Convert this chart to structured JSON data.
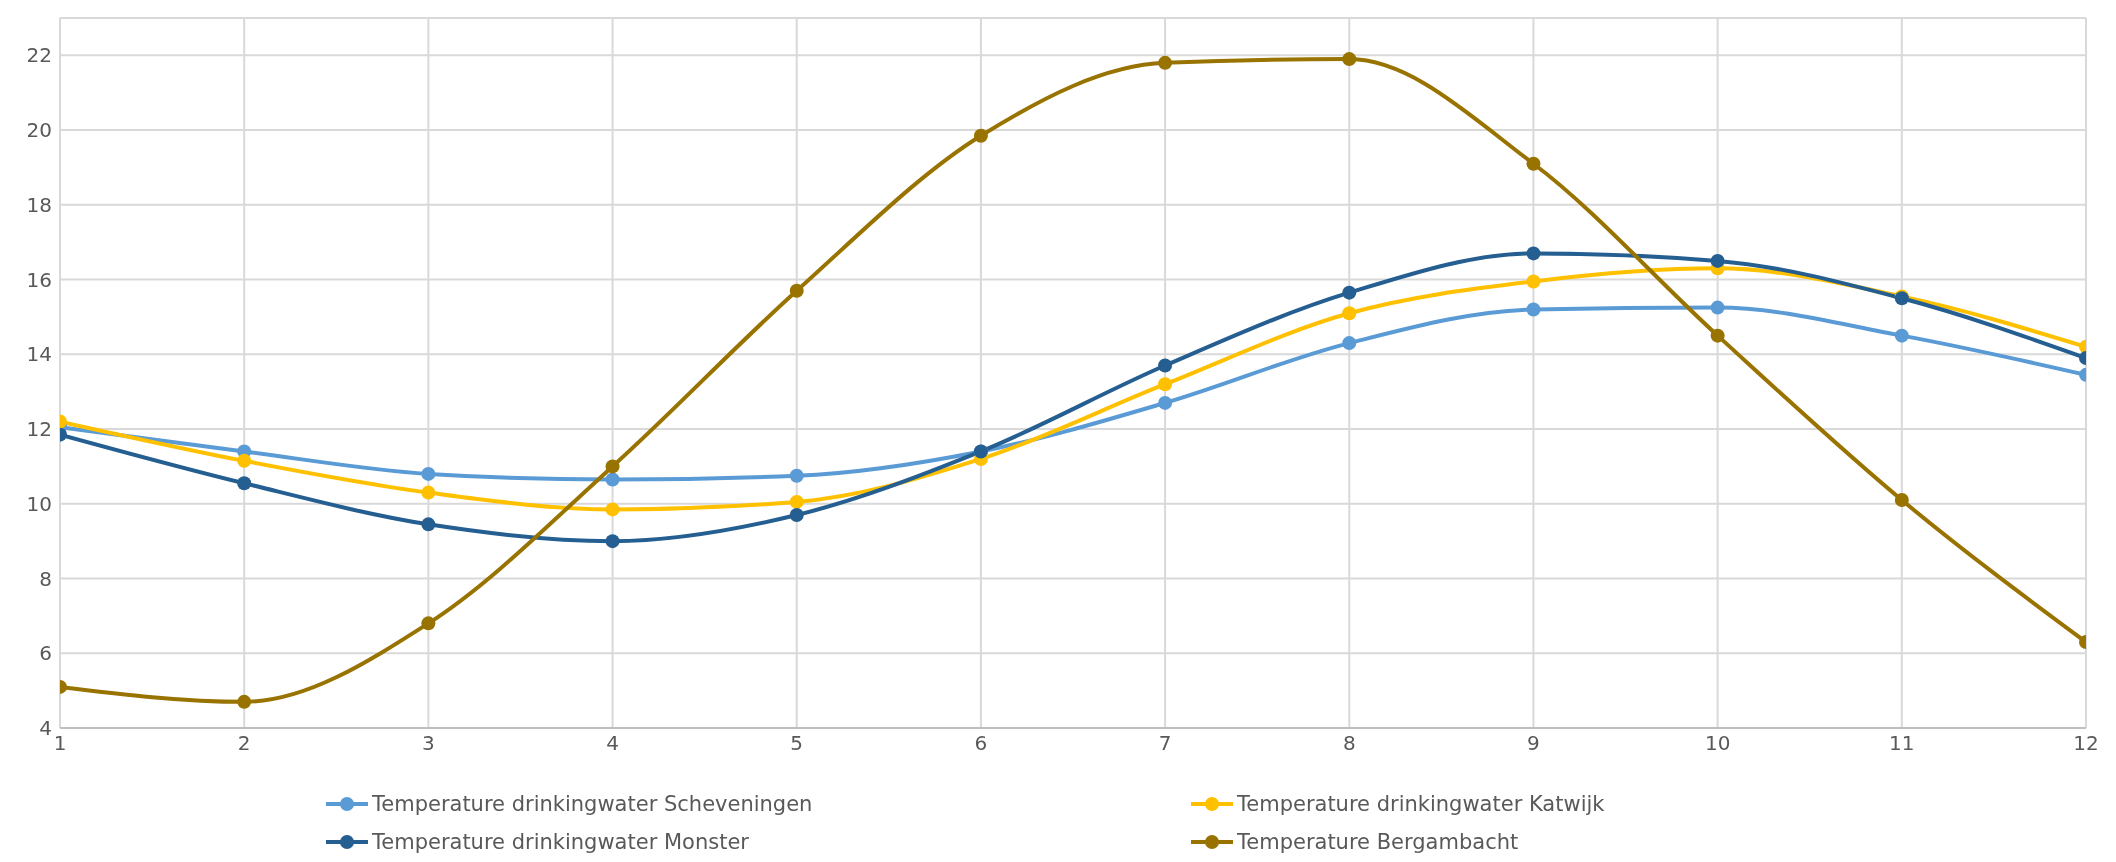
{
  "chart_data": {
    "type": "line",
    "x": [
      1,
      2,
      3,
      4,
      5,
      6,
      7,
      8,
      9,
      10,
      11,
      12
    ],
    "xlim": [
      1,
      12
    ],
    "xticks": [
      1,
      2,
      3,
      4,
      5,
      6,
      7,
      8,
      9,
      10,
      11,
      12
    ],
    "ylim": [
      4,
      23
    ],
    "yticks": [
      4,
      6,
      8,
      10,
      12,
      14,
      16,
      18,
      20,
      22
    ],
    "grid": true,
    "legend": "bottom",
    "marker": "circle",
    "line_style": "solid",
    "series": [
      {
        "name": "Temperature drinkingwater Scheveningen",
        "color": "#5b9bd5",
        "values": [
          12.05,
          11.4,
          10.8,
          10.65,
          10.75,
          11.4,
          12.7,
          14.3,
          15.2,
          15.25,
          14.5,
          13.45
        ]
      },
      {
        "name": "Temperature drinkingwater Katwijk",
        "color": "#ffc000",
        "values": [
          12.2,
          11.15,
          10.3,
          9.85,
          10.05,
          11.2,
          13.2,
          15.1,
          15.95,
          16.3,
          15.55,
          14.2
        ]
      },
      {
        "name": "Temperature drinkingwater Monster",
        "color": "#255e91",
        "values": [
          11.85,
          10.55,
          9.45,
          9.0,
          9.7,
          11.4,
          13.7,
          15.65,
          16.7,
          16.5,
          15.5,
          13.9
        ]
      },
      {
        "name": "Temperature Bergambacht",
        "color": "#997300",
        "values": [
          5.1,
          4.7,
          6.8,
          11.0,
          15.7,
          19.85,
          21.8,
          21.9,
          19.1,
          14.5,
          10.1,
          6.3
        ]
      }
    ]
  }
}
